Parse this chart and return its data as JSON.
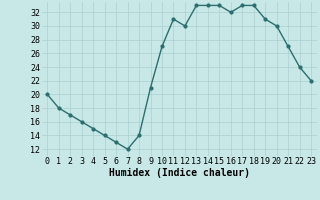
{
  "x": [
    0,
    1,
    2,
    3,
    4,
    5,
    6,
    7,
    8,
    9,
    10,
    11,
    12,
    13,
    14,
    15,
    16,
    17,
    18,
    19,
    20,
    21,
    22,
    23
  ],
  "y": [
    20,
    18,
    17,
    16,
    15,
    14,
    13,
    12,
    14,
    21,
    27,
    31,
    30,
    33,
    33,
    33,
    32,
    33,
    33,
    31,
    30,
    27,
    24,
    22
  ],
  "line_color": "#2d6e6e",
  "marker": "o",
  "marker_size": 2,
  "bg_color": "#c8e8e8",
  "grid_color": "#aacfcf",
  "xlabel": "Humidex (Indice chaleur)",
  "xlim": [
    -0.5,
    23.5
  ],
  "ylim": [
    11,
    33.5
  ],
  "yticks": [
    12,
    14,
    16,
    18,
    20,
    22,
    24,
    26,
    28,
    30,
    32
  ],
  "xticks": [
    0,
    1,
    2,
    3,
    4,
    5,
    6,
    7,
    8,
    9,
    10,
    11,
    12,
    13,
    14,
    15,
    16,
    17,
    18,
    19,
    20,
    21,
    22,
    23
  ],
  "xlabel_fontsize": 7,
  "tick_fontsize": 6,
  "line_width": 1.0
}
